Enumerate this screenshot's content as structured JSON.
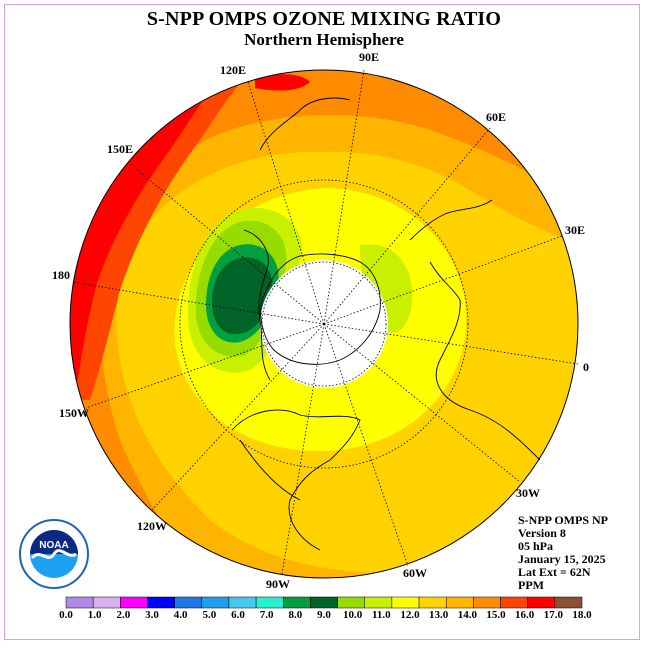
{
  "title": "S-NPP OMPS OZONE MIXING RATIO",
  "subtitle": "Northern Hemisphere",
  "longitude_labels": {
    "l90e": "90E",
    "l60e": "60E",
    "l30e": "30E",
    "l0": "0",
    "l30w": "30W",
    "l60w": "60W",
    "l90w": "90W",
    "l120w": "120W",
    "l150w": "150W",
    "l180": "180",
    "l150e": "150E",
    "l120e": "120E"
  },
  "info": {
    "instrument": "S-NPP OMPS NP",
    "version": "Version 8",
    "level": "05 hPa",
    "date": "January 15, 2025",
    "lat_ext": "Lat Ext = 62N",
    "units": "PPM"
  },
  "colorbar": {
    "ticks": [
      "0.0",
      "1.0",
      "2.0",
      "3.0",
      "4.0",
      "5.0",
      "6.0",
      "7.0",
      "8.0",
      "9.0",
      "10.0",
      "11.0",
      "12.0",
      "13.0",
      "14.0",
      "15.0",
      "16.0",
      "17.0",
      "18.0"
    ],
    "colors": [
      "#b088e8",
      "#d8b0f0",
      "#ff00ff",
      "#0000ff",
      "#1e78e6",
      "#1ea0f0",
      "#46c8f0",
      "#28f0d0",
      "#00a040",
      "#006428",
      "#96dc00",
      "#c8f000",
      "#ffff00",
      "#ffd200",
      "#ffb400",
      "#ff8c00",
      "#ff4600",
      "#ff0000",
      "#8c5032"
    ]
  },
  "logo": {
    "text": "NOAA",
    "ring_text": "NATIONAL OCEANIC AND ATMOSPHERIC ADMINISTRATION",
    "dept_text": "U.S. DEPARTMENT OF COMMERCE"
  },
  "colors": {
    "frame": "#e0a0e8"
  }
}
